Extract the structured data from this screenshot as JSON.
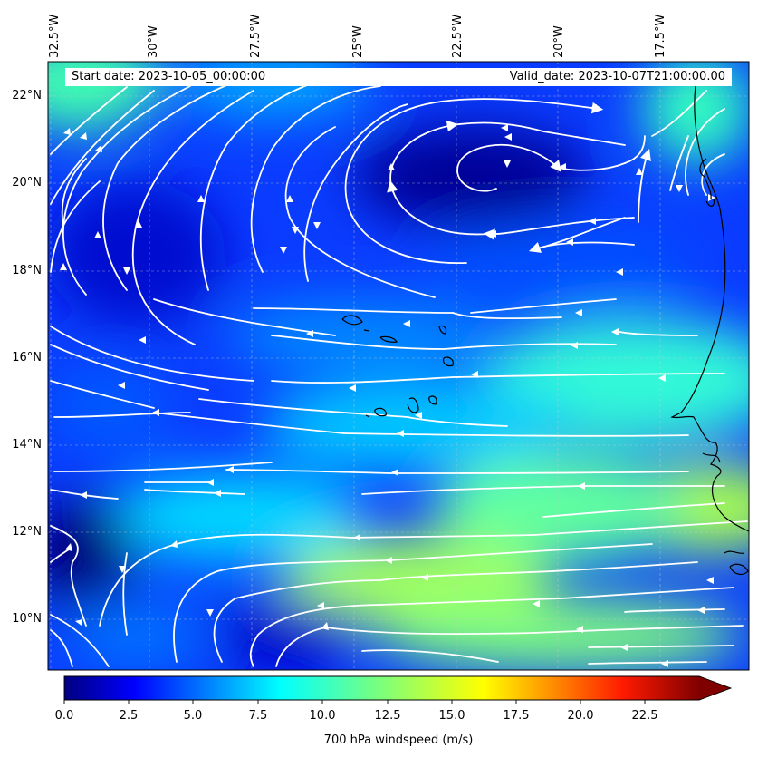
{
  "header": {
    "start_date": "Start date: 2023-10-05_00:00:00",
    "valid_date": "Valid_date: 2023-10-07T21:00:00.00"
  },
  "map": {
    "lon_ticks": [
      "32.5°W",
      "30°W",
      "27.5°W",
      "25°W",
      "22.5°W",
      "20°W",
      "17.5°W"
    ],
    "lat_ticks": [
      "22°N",
      "20°N",
      "18°N",
      "16°N",
      "14°N",
      "12°N",
      "10°N"
    ],
    "field": "700 hPa windspeed",
    "vortex_center": {
      "lon": -21.5,
      "lat": 20.0
    }
  },
  "colorbar": {
    "label": "700 hPa windspeed (m/s)",
    "ticks": [
      "0.0",
      "2.5",
      "5.0",
      "7.5",
      "10.0",
      "12.5",
      "15.0",
      "17.5",
      "20.0",
      "22.5"
    ],
    "min": 0,
    "max": 25,
    "colormap": "jet",
    "extend": "max"
  },
  "colors": {
    "streamline": "#ffffff",
    "coastline": "#000000",
    "gridline": "#cccccc"
  }
}
